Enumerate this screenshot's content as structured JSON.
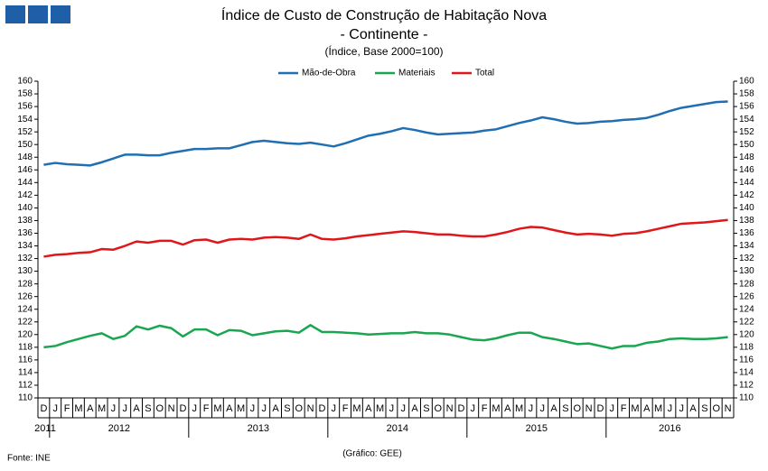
{
  "chart_data": {
    "type": "line",
    "title": "Índice de Custo de Construção de Habitação Nova",
    "subtitle": "- Continente -",
    "y_label": "(Índice, Base 2000=100)",
    "source": "Fonte: INE",
    "credit": "(Gráfico: GEE)",
    "categories": [
      "D",
      "J",
      "F",
      "M",
      "A",
      "M",
      "J",
      "J",
      "A",
      "S",
      "O",
      "N",
      "D",
      "J",
      "F",
      "M",
      "A",
      "M",
      "J",
      "J",
      "A",
      "S",
      "O",
      "N",
      "D",
      "J",
      "F",
      "M",
      "A",
      "M",
      "J",
      "J",
      "A",
      "S",
      "O",
      "N",
      "D",
      "J",
      "F",
      "M",
      "A",
      "M",
      "J",
      "J",
      "A",
      "S",
      "O",
      "N",
      "D",
      "J",
      "F",
      "M",
      "A",
      "M",
      "J",
      "J",
      "A",
      "S",
      "O",
      "N"
    ],
    "years": [
      "2011",
      "2012",
      "2013",
      "2014",
      "2015",
      "2016"
    ],
    "legend": "top",
    "series": [
      {
        "name": "Mão-de-Obra",
        "color": "#1f6fb2",
        "values": [
          146.8,
          147.1,
          146.9,
          146.8,
          146.7,
          147.2,
          147.8,
          148.4,
          148.4,
          148.3,
          148.3,
          148.7,
          149.0,
          149.3,
          149.3,
          149.4,
          149.4,
          149.9,
          150.4,
          150.6,
          150.4,
          150.2,
          150.1,
          150.3,
          150.0,
          149.7,
          150.2,
          150.8,
          151.4,
          151.7,
          152.1,
          152.6,
          152.3,
          151.9,
          151.6,
          151.7,
          151.8,
          151.9,
          152.2,
          152.4,
          152.9,
          153.4,
          153.8,
          154.3,
          154.0,
          153.6,
          153.3,
          153.4,
          153.6,
          153.7,
          153.9,
          154.0,
          154.2,
          154.7,
          155.3,
          155.8,
          156.1,
          156.4,
          156.7,
          156.8
        ]
      },
      {
        "name": "Materiais",
        "color": "#1aa650",
        "values": [
          118.0,
          118.2,
          118.8,
          119.3,
          119.8,
          120.2,
          119.3,
          119.8,
          121.3,
          120.8,
          121.4,
          121.0,
          119.7,
          120.8,
          120.8,
          119.9,
          120.7,
          120.6,
          119.9,
          120.2,
          120.5,
          120.6,
          120.3,
          121.5,
          120.4,
          120.4,
          120.3,
          120.2,
          120.0,
          120.1,
          120.2,
          120.2,
          120.4,
          120.2,
          120.2,
          120.0,
          119.6,
          119.2,
          119.1,
          119.4,
          119.9,
          120.3,
          120.3,
          119.6,
          119.3,
          118.9,
          118.5,
          118.6,
          118.2,
          117.8,
          118.2,
          118.2,
          118.7,
          118.9,
          119.3,
          119.4,
          119.3,
          119.3,
          119.4,
          119.6
        ]
      },
      {
        "name": "Total",
        "color": "#e0161a",
        "values": [
          132.3,
          132.6,
          132.7,
          132.9,
          133.0,
          133.5,
          133.4,
          134.0,
          134.7,
          134.5,
          134.8,
          134.8,
          134.2,
          134.9,
          135.0,
          134.5,
          135.0,
          135.1,
          135.0,
          135.3,
          135.4,
          135.3,
          135.1,
          135.8,
          135.1,
          135.0,
          135.2,
          135.5,
          135.7,
          135.9,
          136.1,
          136.3,
          136.2,
          136.0,
          135.8,
          135.8,
          135.6,
          135.5,
          135.5,
          135.8,
          136.2,
          136.7,
          137.0,
          136.9,
          136.5,
          136.1,
          135.8,
          135.9,
          135.8,
          135.6,
          135.9,
          136.0,
          136.3,
          136.7,
          137.1,
          137.5,
          137.6,
          137.7,
          137.9,
          138.1
        ]
      }
    ],
    "ylim": [
      110,
      160
    ],
    "yticks": [
      110,
      112,
      114,
      116,
      118,
      120,
      122,
      124,
      126,
      128,
      130,
      132,
      134,
      136,
      138,
      140,
      142,
      144,
      146,
      148,
      150,
      152,
      154,
      156,
      158,
      160
    ],
    "y2lim": [
      110,
      160
    ],
    "y2ticks": [
      110,
      112,
      114,
      116,
      118,
      120,
      122,
      124,
      126,
      128,
      130,
      132,
      134,
      136,
      138,
      140,
      142,
      144,
      146,
      148,
      150,
      152,
      154,
      156,
      158,
      160
    ]
  }
}
